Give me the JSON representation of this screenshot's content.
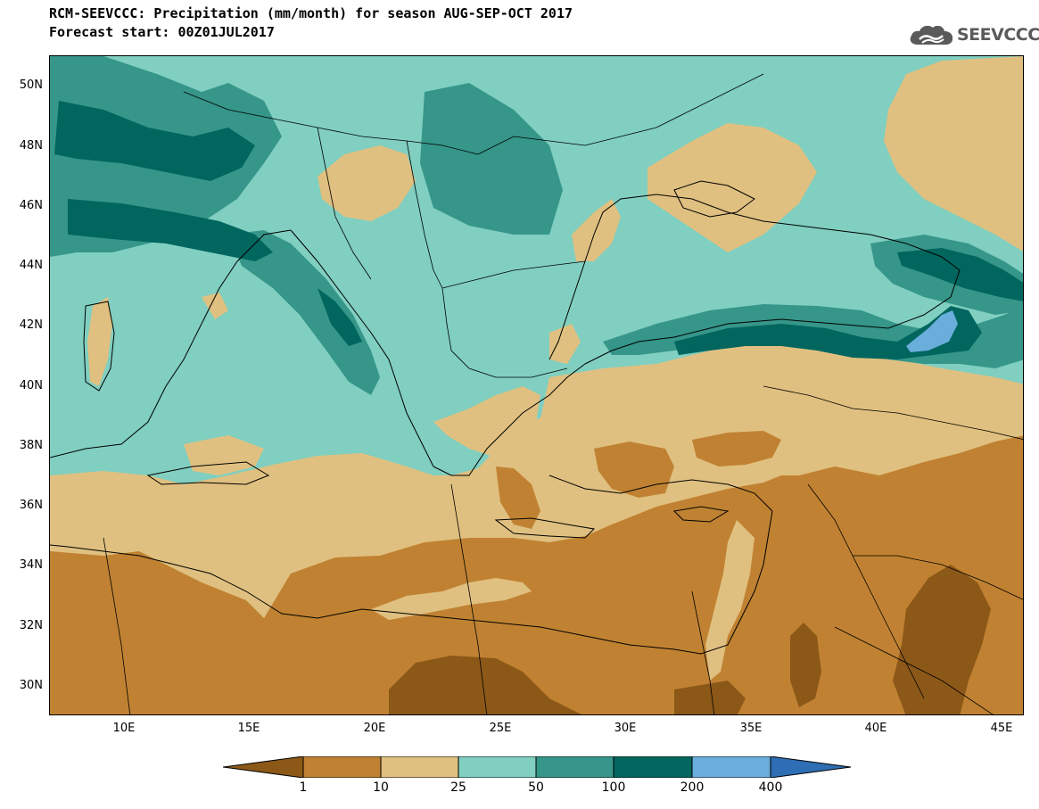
{
  "header": {
    "title_line1": "RCM-SEEVCCC: Precipitation (mm/month) for season AUG-SEP-OCT 2017",
    "title_line2": "Forecast start: 00Z01JUL2017"
  },
  "logo": {
    "text": "SEEVCCC",
    "icon": "cloud-icon"
  },
  "map": {
    "lat_labels": [
      "50N",
      "48N",
      "46N",
      "44N",
      "42N",
      "40N",
      "38N",
      "36N",
      "34N",
      "32N",
      "30N"
    ],
    "lon_labels": [
      "10E",
      "15E",
      "20E",
      "25E",
      "30E",
      "35E",
      "40E",
      "45E"
    ]
  },
  "legend": {
    "levels": [
      "1",
      "10",
      "25",
      "50",
      "100",
      "200",
      "400"
    ],
    "colors": [
      "#8c5818",
      "#c08232",
      "#e0c080",
      "#80cfc0",
      "#359689",
      "#00665e",
      "#6aaedc",
      "#2e6eb4"
    ]
  }
}
